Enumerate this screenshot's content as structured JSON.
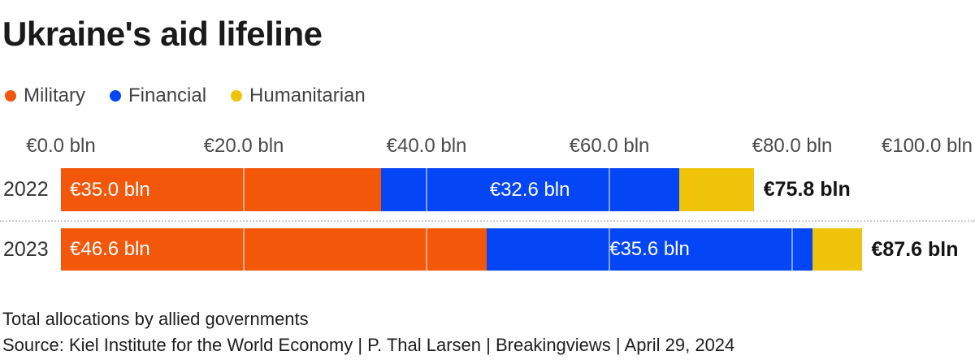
{
  "title": "Ukraine's aid lifeline",
  "legend": {
    "items": [
      {
        "label": "Military",
        "color": "#f2570a"
      },
      {
        "label": "Financial",
        "color": "#0446f6"
      },
      {
        "label": "Humanitarian",
        "color": "#f0c30b"
      }
    ]
  },
  "chart_data": {
    "type": "bar",
    "orientation": "horizontal",
    "stacked": true,
    "title": "Ukraine's aid lifeline",
    "categories": [
      "2022",
      "2023"
    ],
    "series": [
      {
        "name": "Military",
        "color": "#f2570a",
        "values": [
          35.0,
          46.6
        ],
        "value_labels": [
          "€35.0 bln",
          "€46.6 bln"
        ]
      },
      {
        "name": "Financial",
        "color": "#0446f6",
        "values": [
          32.6,
          35.6
        ],
        "value_labels": [
          "€32.6 bln",
          "€35.6 bln"
        ]
      },
      {
        "name": "Humanitarian",
        "color": "#f0c30b",
        "values": [
          8.2,
          5.4
        ],
        "value_labels": [
          "",
          ""
        ]
      }
    ],
    "totals": [
      {
        "value": 75.8,
        "label": "€75.8 bln"
      },
      {
        "value": 87.6,
        "label": "€87.6 bln"
      }
    ],
    "x_axis": {
      "min": 0,
      "max": 100,
      "ticks": [
        0,
        20,
        40,
        60,
        80,
        100
      ],
      "tick_labels": [
        "€0.0 bln",
        "€20.0 bln",
        "€40.0 bln",
        "€60.0 bln",
        "€80.0 bln",
        "€100.0 bln"
      ]
    },
    "gridlines": [
      20,
      40,
      60,
      80
    ],
    "legend_position": "top",
    "grid": "vertical-white-over-bars"
  },
  "footer": {
    "note": "Total allocations by allied governments",
    "source": "Source: Kiel Institute for the World Economy | P. Thal Larsen | Breakingviews | April 29, 2024"
  }
}
